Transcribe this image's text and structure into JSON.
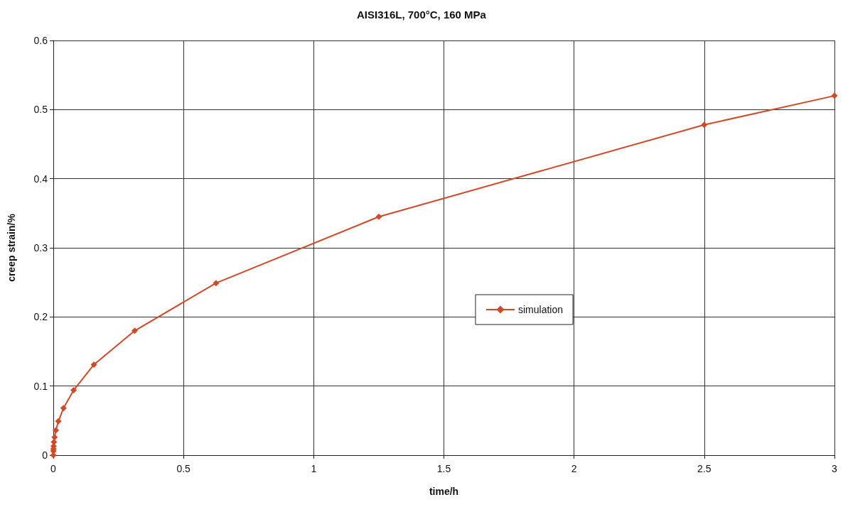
{
  "chart_data": {
    "type": "line",
    "title": "AISI316L, 700°C, 160 MPa",
    "xlabel": "time/h",
    "ylabel": "creep strain/%",
    "x": [
      0,
      0.0003,
      0.0006,
      0.0012,
      0.0024,
      0.0049,
      0.0098,
      0.0195,
      0.039,
      0.078,
      0.156,
      0.3125,
      0.625,
      1.25,
      2.5,
      3
    ],
    "series": [
      {
        "name": "simulation",
        "color": "#d04a2a",
        "values": [
          0,
          0.006,
          0.009,
          0.013,
          0.019,
          0.026,
          0.036,
          0.049,
          0.068,
          0.094,
          0.131,
          0.18,
          0.249,
          0.345,
          0.478,
          0.52
        ]
      }
    ],
    "xlim": [
      0,
      3
    ],
    "xticks": [
      0,
      0.5,
      1,
      1.5,
      2,
      2.5,
      3
    ],
    "ylim": [
      0,
      0.6
    ],
    "yticks": [
      0,
      0.1,
      0.2,
      0.3,
      0.4,
      0.5,
      0.6
    ],
    "grid": true,
    "legend": "right",
    "marker": "diamond",
    "line_style": "solid"
  }
}
